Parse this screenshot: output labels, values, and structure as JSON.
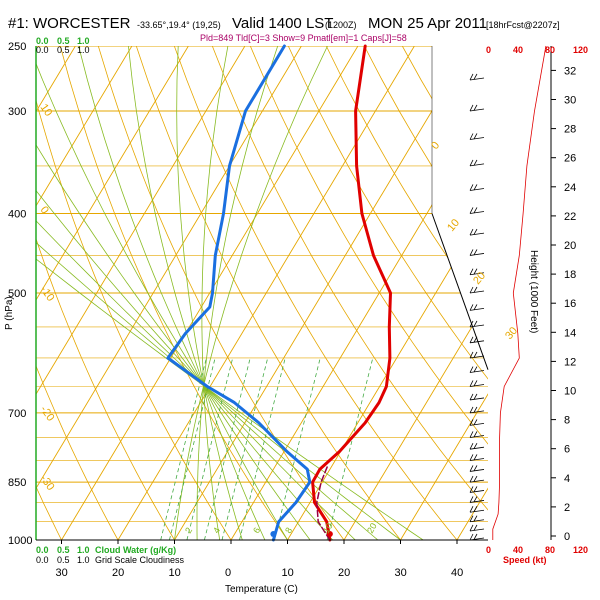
{
  "header": {
    "station": "#1: WORCESTER",
    "coords": "-33.65°,19.4° (19,25)",
    "valid": "Valid 1400 LST",
    "utc": "(1200Z)",
    "date": "MON 25 Apr 2011",
    "forecast": "[18hrFcst@2207z]",
    "indices": "Pld=849 Tld[C]=3 Show=9 Pmatl[em]=1 Caps[J]=58"
  },
  "left_axis": {
    "top_scale_labels": [
      "0.0",
      "0.5",
      "1.0"
    ],
    "top_scale_labels_green": [
      "0.0",
      "0.5",
      "1.0"
    ],
    "bottom_green_labels": [
      "0.0",
      "0.5",
      "1.0"
    ],
    "bottom_green_caption": "Cloud Water (g/Kg)",
    "bottom_black_labels": [
      "0.0",
      "0.5",
      "1.0"
    ],
    "bottom_black_caption": "Grid Scale Cloudiness"
  },
  "right_axis": {
    "red_top_ticks": [
      "0",
      "40",
      "80",
      "120"
    ],
    "red_bottom_ticks": [
      "0",
      "40",
      "80",
      "120"
    ],
    "speed_label": "Speed (kt)",
    "height_label": "Height (1000 Feet)",
    "height_ticks": [
      "0",
      "2",
      "4",
      "6",
      "8",
      "10",
      "12",
      "14",
      "16",
      "18",
      "20",
      "22",
      "24",
      "26",
      "28",
      "30",
      "32"
    ]
  },
  "colors": {
    "temperature": "#e00000",
    "dewpoint": "#1a6fe0",
    "parcel": "#990044",
    "isotherm": "#e6a700",
    "dry_adiabat": "#e6a700",
    "moist_adiabat": "#88bb22",
    "mixing_ratio": "#44aa44",
    "wind_speed": "#e00000"
  },
  "chart_data": {
    "type": "line",
    "title": "",
    "xlabel": "Temperature (C)",
    "ylabel": "P (hPa)",
    "xlim": [
      -35,
      45
    ],
    "ylim": [
      1000,
      250
    ],
    "y_scale": "log",
    "x_ticks": [
      "30",
      "20",
      "10",
      "0",
      "10",
      "20",
      "30",
      "40"
    ],
    "x_tick_values": [
      -30,
      -20,
      -10,
      0,
      10,
      20,
      30,
      40
    ],
    "y_ticks": [
      "250",
      "300",
      "400",
      "500",
      "700",
      "850",
      "1000"
    ],
    "y_tick_values": [
      250,
      300,
      400,
      500,
      700,
      850,
      1000
    ],
    "isotherm_labels": [
      "-10",
      "0",
      "10",
      "20",
      "30",
      "40",
      "20",
      "30"
    ],
    "dry_adiabat_labels": [
      "10",
      "0",
      "-10",
      "-20",
      "-30",
      "0",
      "10",
      "20",
      "30"
    ],
    "mixing_ratio_labels": [
      "2",
      "4",
      "6",
      "8",
      "10",
      "20"
    ],
    "series": [
      {
        "name": "Temperature",
        "points": [
          [
            17.5,
            1000
          ],
          [
            15,
            950
          ],
          [
            10.8,
            900
          ],
          [
            8.3,
            850
          ],
          [
            8.2,
            820
          ],
          [
            9.8,
            780
          ],
          [
            11.3,
            720
          ],
          [
            11.6,
            680
          ],
          [
            11.2,
            650
          ],
          [
            8.8,
            600
          ],
          [
            5.4,
            550
          ],
          [
            2.0,
            500
          ],
          [
            -5.0,
            450
          ],
          [
            -11.5,
            400
          ],
          [
            -17.5,
            350
          ],
          [
            -23.5,
            300
          ],
          [
            -28.7,
            250
          ]
        ]
      },
      {
        "name": "Dewpoint",
        "points": [
          [
            7.5,
            1000
          ],
          [
            6.5,
            950
          ],
          [
            7.5,
            900
          ],
          [
            7.8,
            850
          ],
          [
            6.0,
            820
          ],
          [
            0.5,
            780
          ],
          [
            -7.5,
            720
          ],
          [
            -14.0,
            680
          ],
          [
            -20.5,
            650
          ],
          [
            -30.5,
            600
          ],
          [
            -30.0,
            560
          ],
          [
            -28.5,
            520
          ],
          [
            -29.5,
            500
          ],
          [
            -33.0,
            450
          ],
          [
            -36.0,
            400
          ],
          [
            -40.0,
            350
          ],
          [
            -43.0,
            300
          ],
          [
            -43.0,
            250
          ]
        ]
      },
      {
        "name": "Parcel",
        "points": [
          [
            17.5,
            1000
          ],
          [
            13.5,
            950
          ],
          [
            11.2,
            900
          ],
          [
            9.8,
            850
          ],
          [
            9.2,
            810
          ]
        ]
      }
    ],
    "surface_markers": [
      {
        "name": "Surface Temperature",
        "x": 17.5,
        "y": 1000
      },
      {
        "name": "Surface Dewpoint",
        "x": 7.5,
        "y": 1000
      }
    ],
    "wind_speed_profile": {
      "xlim": [
        0,
        120
      ],
      "unit": "kt",
      "points": [
        [
          5,
          1000
        ],
        [
          5,
          970
        ],
        [
          12,
          930
        ],
        [
          13,
          900
        ],
        [
          14,
          850
        ],
        [
          14,
          800
        ],
        [
          14,
          750
        ],
        [
          15,
          700
        ],
        [
          20,
          650
        ],
        [
          40,
          600
        ],
        [
          38,
          560
        ],
        [
          32,
          500
        ],
        [
          40,
          450
        ],
        [
          45,
          400
        ],
        [
          50,
          350
        ],
        [
          60,
          300
        ],
        [
          75,
          250
        ]
      ]
    }
  }
}
